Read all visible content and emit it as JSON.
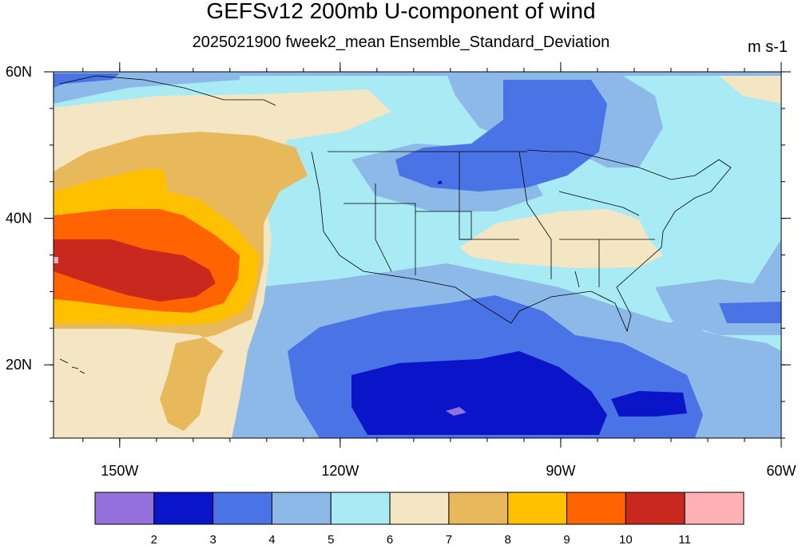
{
  "title": "GEFSv12 200mb U-component of wind",
  "subtitle": "2025021900 fweek2_mean Ensemble_Standard_Deviation",
  "units": "m s-1",
  "chart_data": {
    "type": "heatmap",
    "x_ticks": [
      {
        "value": -150,
        "label": "150W"
      },
      {
        "value": -120,
        "label": "120W"
      },
      {
        "value": -90,
        "label": "90W"
      },
      {
        "value": -60,
        "label": "60W"
      }
    ],
    "y_ticks": [
      {
        "value": 60,
        "label": "60N"
      },
      {
        "value": 40,
        "label": "40N"
      },
      {
        "value": 20,
        "label": "20N"
      }
    ],
    "xlim": [
      -159,
      -60
    ],
    "ylim": [
      10,
      60
    ],
    "colorbar": {
      "levels": [
        "2",
        "3",
        "4",
        "5",
        "6",
        "7",
        "8",
        "9",
        "10",
        "11"
      ],
      "colors": [
        "#9370db",
        "#0a14c8",
        "#4a73e6",
        "#8db9e8",
        "#a8ebf5",
        "#f5e6c3",
        "#e8b95a",
        "#ffc000",
        "#ff6400",
        "#c8281e",
        "#ffb0b4"
      ]
    },
    "regions": [
      {
        "value": "4-5",
        "lon": -103,
        "lat": 47.5
      },
      {
        "value": "4-5",
        "lon": -82,
        "lat": 54
      },
      {
        "value": "6-7",
        "lon": -87,
        "lat": 37
      },
      {
        "value": "8-9",
        "lon": -143,
        "lat": 38
      },
      {
        "value": "9-10",
        "lon": -150,
        "lat": 34
      },
      {
        "value": "10-11",
        "lon": -148,
        "lat": 33
      },
      {
        "value": "2-3",
        "lon": -97,
        "lat": 15
      },
      {
        "value": "3-4",
        "lon": -100,
        "lat": 22
      },
      {
        "value": "7-8",
        "lon": -137,
        "lat": 15
      }
    ]
  }
}
